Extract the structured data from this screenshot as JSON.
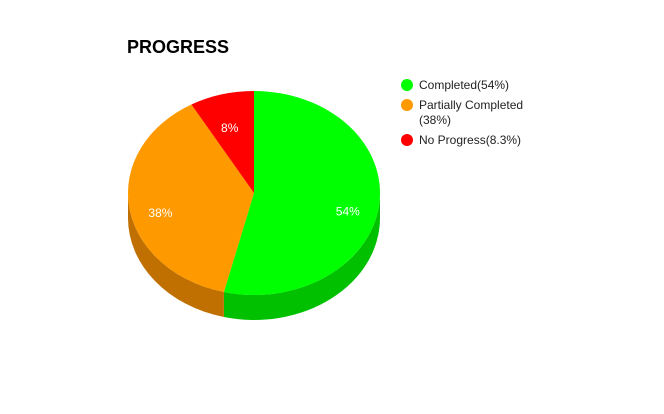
{
  "chart_data": {
    "type": "pie",
    "title": "PROGRESS",
    "categories": [
      "Completed(54%)",
      "Partially Completed(38%)",
      "No Progress(8.3%)"
    ],
    "values": [
      54,
      38,
      8.3
    ],
    "value_labels": [
      "54%",
      "38%",
      "8%"
    ],
    "colors": [
      "#00ff00",
      "#ff9900",
      "#ff0000"
    ],
    "side_colors": [
      "#00c000",
      "#c07000",
      "#c00000"
    ],
    "legend": "right"
  }
}
